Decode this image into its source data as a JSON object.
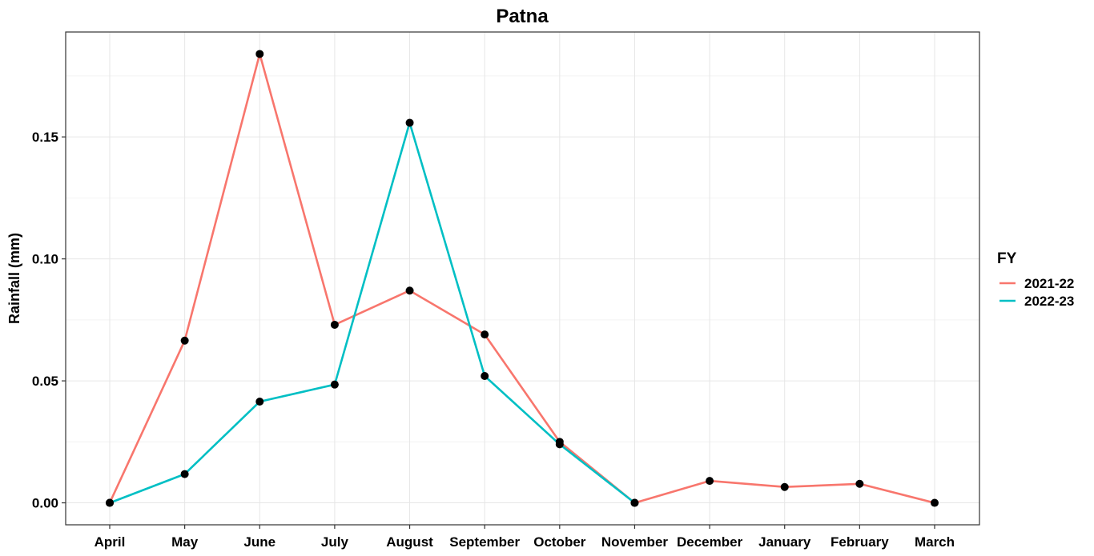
{
  "chart_data": {
    "type": "line",
    "title": "Patna",
    "xlabel": "",
    "ylabel": "Rainfall (mm)",
    "categories": [
      "April",
      "May",
      "June",
      "July",
      "August",
      "September",
      "October",
      "November",
      "December",
      "January",
      "February",
      "March"
    ],
    "yticks": [
      0.0,
      0.05,
      0.1,
      0.15
    ],
    "ytick_labels": [
      "0.00",
      "0.05",
      "0.10",
      "0.15"
    ],
    "ylim": [
      -0.009,
      0.193
    ],
    "grid": true,
    "legend": {
      "title": "FY",
      "position": "right"
    },
    "point_color": "#000000",
    "series": [
      {
        "name": "2021-22",
        "color": "#F8766D",
        "values": [
          0.0,
          0.0665,
          0.184,
          0.073,
          0.087,
          0.069,
          0.025,
          0.0,
          0.009,
          0.0065,
          0.0078,
          0.0
        ]
      },
      {
        "name": "2022-23",
        "color": "#00BFC4",
        "values": [
          0.0,
          0.0118,
          0.0415,
          0.0485,
          0.1558,
          0.052,
          0.024,
          0.0,
          null,
          null,
          null,
          null
        ]
      }
    ]
  }
}
